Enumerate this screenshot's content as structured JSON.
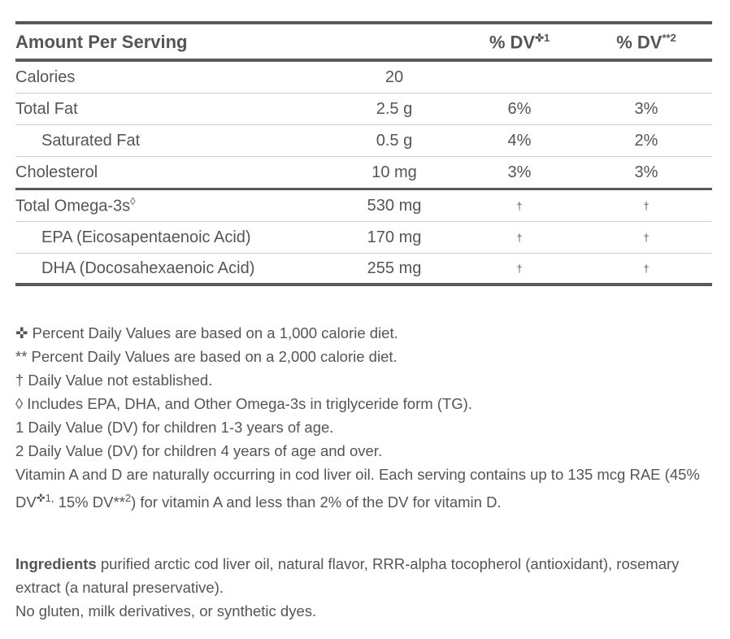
{
  "header": {
    "amount": "Amount Per Serving",
    "dv1": "% DV",
    "dv1_sup": "✜1",
    "dv2": "% DV",
    "dv2_sup": "**2"
  },
  "rows": [
    {
      "name": "Calories",
      "amount": "20",
      "dv1": "",
      "dv2": ""
    },
    {
      "name": "Total Fat",
      "amount": "2.5 g",
      "dv1": "6%",
      "dv2": "3%"
    },
    {
      "name": "Saturated Fat",
      "amount": "0.5 g",
      "dv1": "4%",
      "dv2": "2%"
    },
    {
      "name": "Cholesterol",
      "amount": "10 mg",
      "dv1": "3%",
      "dv2": "3%"
    },
    {
      "name": "Total Omega-3s",
      "name_sup": "◊",
      "amount": "530 mg",
      "dv1": "†",
      "dv2": "†"
    },
    {
      "name": "EPA (Eicosapentaenoic Acid)",
      "amount": "170 mg",
      "dv1": "†",
      "dv2": "†"
    },
    {
      "name": "DHA (Docosahexaenoic Acid)",
      "amount": "255 mg",
      "dv1": "†",
      "dv2": "†"
    }
  ],
  "notes": [
    "✜ Percent Daily Values are based on a 1,000 calorie diet.",
    "** Percent Daily Values are based on a 2,000 calorie diet.",
    "† Daily Value not established.",
    "◊ Includes EPA, DHA, and Other Omega-3s in triglyceride form (TG).",
    "1 Daily Value (DV) for children 1-3 years of age.",
    "2 Daily Value (DV) for children 4 years of age and over."
  ],
  "vitamin": {
    "a": "Vitamin A and D are naturally occurring in cod liver oil. Each serving contains up to 135 mcg RAE (45% DV",
    "s1": "✜1,",
    "b": " 15% DV**",
    "s2": "2",
    "c": ") for vitamin A and less than 2% of the DV for vitamin D."
  },
  "ingredients": {
    "label": "Ingredients",
    "text": " purified arctic cod liver oil, natural flavor, RRR-alpha tocopherol (antioxidant), rosemary extract (a natural preservative).",
    "free": "No gluten, milk derivatives, or synthetic dyes."
  }
}
